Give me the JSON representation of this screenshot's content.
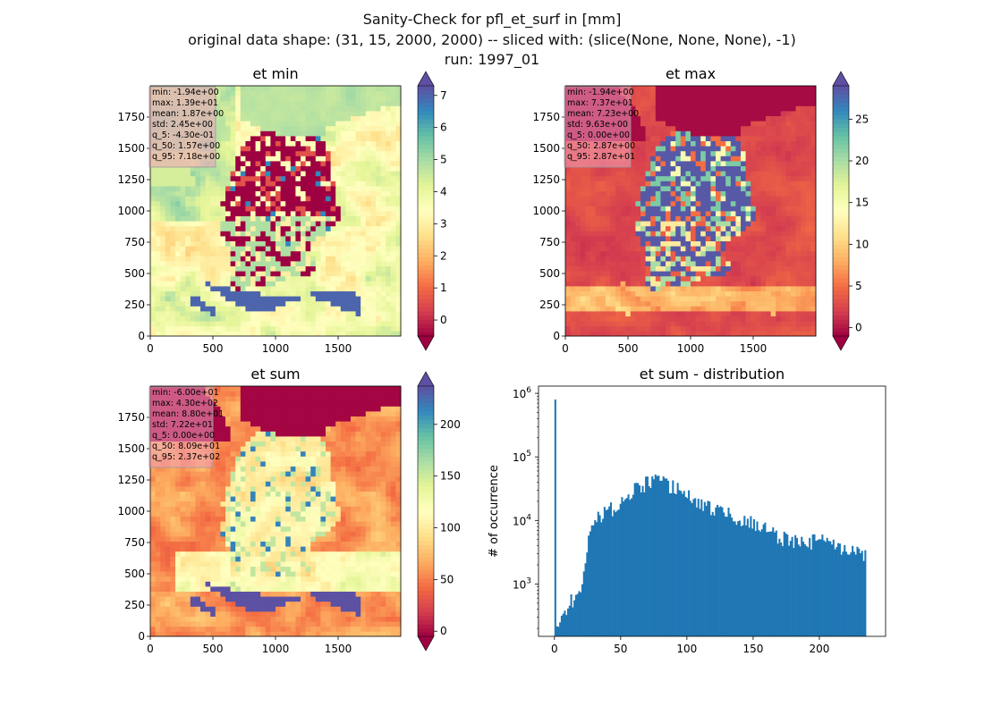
{
  "figure": {
    "suptitle": [
      "Sanity-Check for pfl_et_surf in [mm]",
      "original data shape: (31, 15, 2000, 2000) -- sliced with: (slice(None, None, None), -1)",
      "run: 1997_01"
    ]
  },
  "colors": {
    "spectral": [
      "#9e0142",
      "#d53e4f",
      "#f46d43",
      "#fdae61",
      "#fee08b",
      "#ffffbf",
      "#e6f598",
      "#abdda4",
      "#66c2a5",
      "#3288bd",
      "#5e4fa2"
    ],
    "hist_bar": "#1f77b4",
    "stats_box": "#f0a0bc"
  },
  "chart_data": [
    {
      "type": "heatmap",
      "title": "et min",
      "xlim": [
        0,
        2000
      ],
      "ylim": [
        0,
        2000
      ],
      "xticks": [
        "0",
        "500",
        "1000",
        "1500"
      ],
      "yticks": [
        "0",
        "250",
        "500",
        "750",
        "1000",
        "1250",
        "1500",
        "1750"
      ],
      "colorbar": {
        "min": -0.5,
        "max": 7.3,
        "ticks": [
          "0",
          "1",
          "2",
          "3",
          "4",
          "5",
          "6",
          "7"
        ],
        "extend": "both"
      },
      "stats": [
        "min: -1.94e+00",
        "max: 1.39e+01",
        "mean: 1.87e+00",
        "std: 2.45e+00",
        "q_5: -4.30e-01",
        "q_50: 1.57e+00",
        "q_95: 7.18e+00"
      ]
    },
    {
      "type": "heatmap",
      "title": "et max",
      "xlim": [
        0,
        2000
      ],
      "ylim": [
        0,
        2000
      ],
      "xticks": [
        "0",
        "500",
        "1000",
        "1500"
      ],
      "yticks": [
        "0",
        "250",
        "500",
        "750",
        "1000",
        "1250",
        "1500",
        "1750"
      ],
      "colorbar": {
        "min": -1,
        "max": 29,
        "ticks": [
          "0",
          "5",
          "10",
          "15",
          "20",
          "25"
        ],
        "extend": "both"
      },
      "stats": [
        "min: -1.94e+00",
        "max: 7.37e+01",
        "mean: 7.23e+00",
        "std: 9.63e+00",
        "q_5: 0.00e+00",
        "q_50: 2.87e+00",
        "q_95: 2.87e+01"
      ]
    },
    {
      "type": "heatmap",
      "title": "et sum",
      "xlim": [
        0,
        2000
      ],
      "ylim": [
        0,
        2000
      ],
      "xticks": [
        "0",
        "500",
        "1000",
        "1500"
      ],
      "yticks": [
        "0",
        "250",
        "500",
        "750",
        "1000",
        "1250",
        "1500",
        "1750"
      ],
      "colorbar": {
        "min": -5,
        "max": 237,
        "ticks": [
          "0",
          "50",
          "100",
          "150",
          "200"
        ],
        "extend": "both"
      },
      "stats": [
        "min: -6.00e+01",
        "max: 4.30e+02",
        "mean: 8.80e+01",
        "std: 7.22e+01",
        "q_5: 0.00e+00",
        "q_50: 8.09e+01",
        "q_95: 2.37e+02"
      ]
    },
    {
      "type": "bar",
      "title": "et sum - distribution",
      "xlabel": "",
      "ylabel": "# of occurrence",
      "yscale": "log",
      "xlim": [
        -12,
        250
      ],
      "ylim": [
        150,
        1300000
      ],
      "xticks": [
        0,
        50,
        100,
        150,
        200
      ],
      "yticks": [
        {
          "value": 1000,
          "label": "10^3"
        },
        {
          "value": 10000,
          "label": "10^4"
        },
        {
          "value": 100000,
          "label": "10^5"
        },
        {
          "value": 1000000,
          "label": "10^6"
        }
      ],
      "bins": {
        "start": 0,
        "width": 1.2,
        "count": 196
      },
      "envelope_x": [
        0,
        1,
        2,
        5,
        10,
        15,
        20,
        23,
        25,
        30,
        40,
        50,
        60,
        70,
        75,
        80,
        90,
        100,
        110,
        120,
        130,
        140,
        150,
        160,
        170,
        180,
        190,
        200,
        210,
        220,
        230,
        236
      ],
      "envelope_y": [
        800000,
        230,
        220,
        300,
        450,
        650,
        1000,
        1500,
        5000,
        10000,
        14000,
        20000,
        30000,
        40000,
        44000,
        42000,
        35000,
        25000,
        19000,
        15000,
        13000,
        11000,
        9000,
        7500,
        5500,
        5000,
        4500,
        5000,
        4200,
        3500,
        3000,
        3000
      ]
    }
  ]
}
